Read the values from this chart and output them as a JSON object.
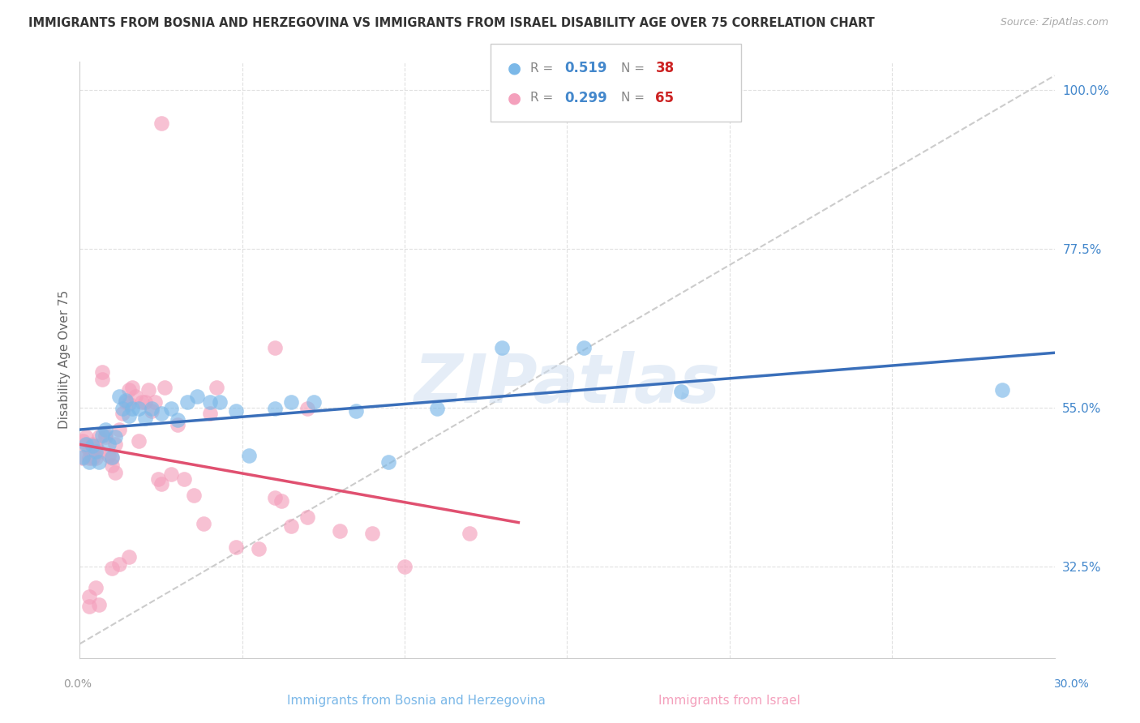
{
  "title": "IMMIGRANTS FROM BOSNIA AND HERZEGOVINA VS IMMIGRANTS FROM ISRAEL DISABILITY AGE OVER 75 CORRELATION CHART",
  "source": "Source: ZipAtlas.com",
  "xlabel_left": "Immigrants from Bosnia and Herzegovina",
  "xlabel_right": "Immigrants from Israel",
  "ylabel": "Disability Age Over 75",
  "xmin": 0.0,
  "xmax": 0.3,
  "ymin": 0.195,
  "ymax": 1.04,
  "right_ytick_vals": [
    0.325,
    0.55,
    0.775,
    1.0
  ],
  "right_ytick_labels": [
    "32.5%",
    "55.0%",
    "77.5%",
    "100.0%"
  ],
  "color_blue": "#7bb8e8",
  "color_pink": "#f4a0bc",
  "color_blue_line": "#3a6fba",
  "color_pink_line": "#e05070",
  "color_ref_line": "#cccccc",
  "watermark": "ZIPatlas",
  "legend_blue_r": "0.519",
  "legend_blue_n": "38",
  "legend_pink_r": "0.299",
  "legend_pink_n": "65",
  "blue_x": [
    0.001,
    0.002,
    0.003,
    0.004,
    0.005,
    0.006,
    0.007,
    0.008,
    0.009,
    0.01,
    0.011,
    0.012,
    0.013,
    0.014,
    0.015,
    0.016,
    0.018,
    0.02,
    0.022,
    0.025,
    0.028,
    0.03,
    0.033,
    0.036,
    0.04,
    0.043,
    0.048,
    0.052,
    0.06,
    0.065,
    0.072,
    0.085,
    0.095,
    0.11,
    0.13,
    0.155,
    0.185,
    0.284
  ],
  "blue_y": [
    0.48,
    0.498,
    0.472,
    0.495,
    0.488,
    0.472,
    0.51,
    0.518,
    0.498,
    0.48,
    0.508,
    0.565,
    0.548,
    0.56,
    0.538,
    0.548,
    0.548,
    0.535,
    0.548,
    0.542,
    0.548,
    0.532,
    0.558,
    0.565,
    0.558,
    0.558,
    0.545,
    0.482,
    0.548,
    0.558,
    0.558,
    0.545,
    0.472,
    0.548,
    0.635,
    0.635,
    0.572,
    0.575
  ],
  "pink_x": [
    0.001,
    0.001,
    0.002,
    0.002,
    0.003,
    0.003,
    0.004,
    0.004,
    0.005,
    0.005,
    0.005,
    0.006,
    0.006,
    0.007,
    0.007,
    0.008,
    0.008,
    0.009,
    0.01,
    0.01,
    0.011,
    0.011,
    0.012,
    0.013,
    0.014,
    0.015,
    0.015,
    0.016,
    0.017,
    0.018,
    0.019,
    0.02,
    0.021,
    0.022,
    0.023,
    0.024,
    0.025,
    0.025,
    0.026,
    0.028,
    0.03,
    0.032,
    0.035,
    0.038,
    0.04,
    0.042,
    0.048,
    0.055,
    0.06,
    0.065,
    0.07,
    0.08,
    0.09,
    0.1,
    0.12,
    0.06,
    0.062,
    0.07,
    0.003,
    0.003,
    0.005,
    0.006,
    0.01,
    0.012,
    0.015
  ],
  "pink_y": [
    0.478,
    0.502,
    0.495,
    0.508,
    0.478,
    0.49,
    0.478,
    0.498,
    0.478,
    0.495,
    0.492,
    0.488,
    0.508,
    0.59,
    0.6,
    0.512,
    0.508,
    0.482,
    0.468,
    0.478,
    0.458,
    0.498,
    0.518,
    0.542,
    0.558,
    0.555,
    0.575,
    0.578,
    0.565,
    0.502,
    0.558,
    0.558,
    0.575,
    0.545,
    0.558,
    0.448,
    0.442,
    0.952,
    0.578,
    0.455,
    0.525,
    0.448,
    0.425,
    0.385,
    0.542,
    0.578,
    0.352,
    0.35,
    0.635,
    0.382,
    0.395,
    0.375,
    0.372,
    0.325,
    0.372,
    0.422,
    0.418,
    0.548,
    0.282,
    0.268,
    0.295,
    0.27,
    0.322,
    0.328,
    0.338
  ]
}
